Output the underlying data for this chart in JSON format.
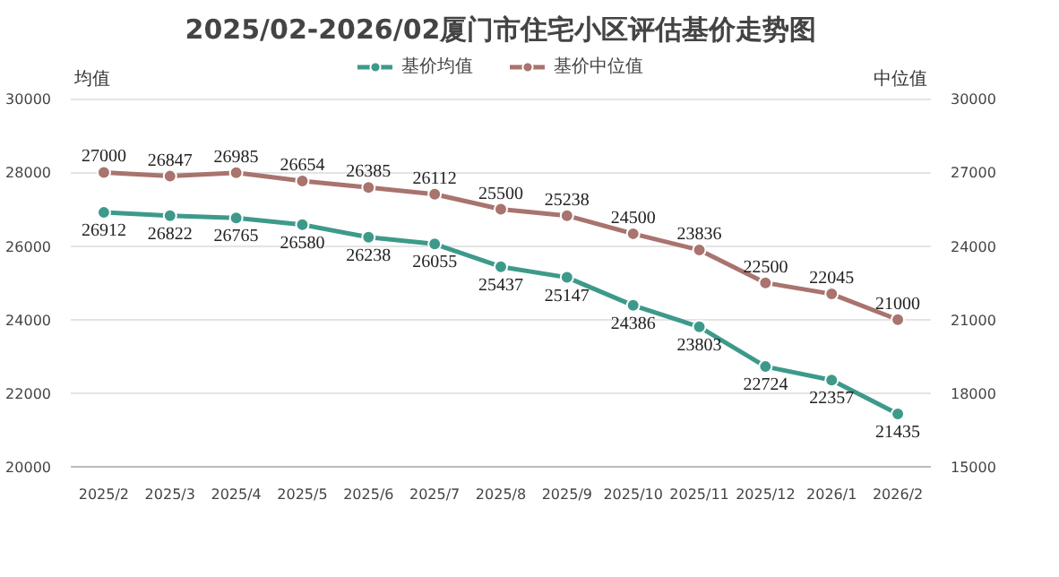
{
  "chart_data": {
    "type": "line",
    "title": "2025/02-2026/02厦门市住宅小区评估基价走势图",
    "ylabel": "均值",
    "y2label": "中位值",
    "categories": [
      "2025/2",
      "2025/3",
      "2025/4",
      "2025/5",
      "2025/6",
      "2025/7",
      "2025/8",
      "2025/9",
      "2025/10",
      "2025/11",
      "2025/12",
      "2026/1",
      "2026/2"
    ],
    "series": [
      {
        "name": "基价均值",
        "color": "#3d9a8b",
        "values": [
          26912,
          26822,
          26765,
          26580,
          26238,
          26055,
          25437,
          25147,
          24386,
          23803,
          22724,
          22357,
          21435
        ]
      },
      {
        "name": "基价中位值",
        "color": "#a9736e",
        "axis": "y2",
        "values": [
          27000,
          26847,
          26985,
          26654,
          26385,
          26112,
          25500,
          25238,
          24500,
          23836,
          22500,
          22045,
          21000
        ]
      }
    ],
    "ylim": [
      20000,
      30000
    ],
    "yticks": [
      20000,
      22000,
      24000,
      26000,
      28000,
      30000
    ],
    "y2lim": [
      15000,
      30000
    ],
    "y2ticks": [
      15000,
      18000,
      21000,
      24000,
      27000,
      30000
    ],
    "grid": "y",
    "legend": "top",
    "marker": "circle",
    "line_style": "solid",
    "data_labels": true
  }
}
